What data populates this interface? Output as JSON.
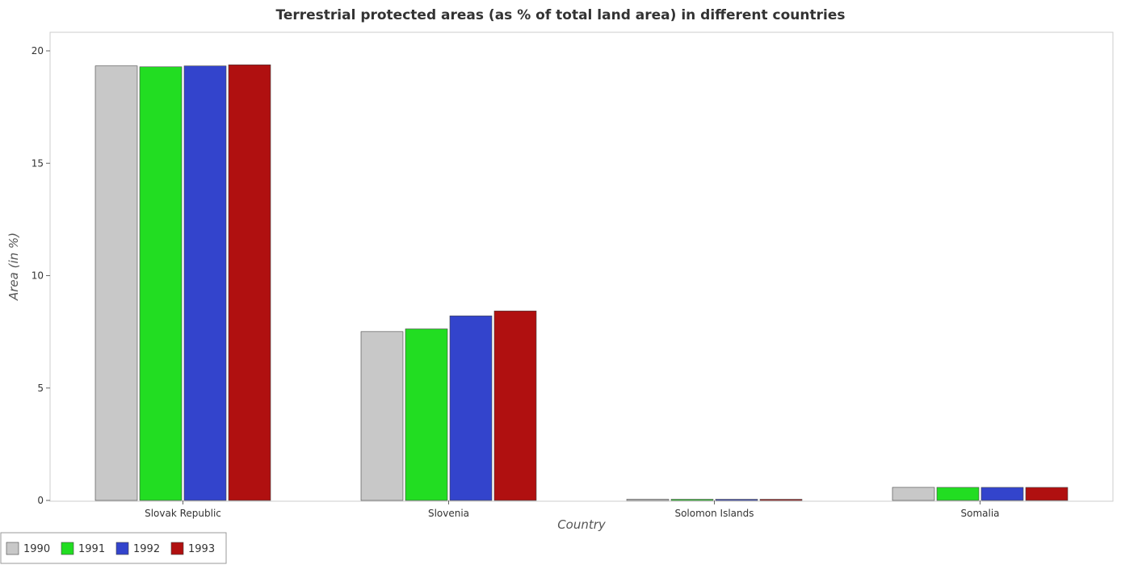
{
  "chart_data": {
    "type": "bar",
    "title": "Terrestrial protected areas (as % of total land area) in different countries",
    "xlabel": "Country",
    "ylabel": "Area (in %)",
    "categories": [
      "Slovak Republic",
      "Slovenia",
      "Solomon Islands",
      "Somalia"
    ],
    "series": [
      {
        "name": "1990",
        "color": "#c8c8c8",
        "values": [
          19.33,
          7.51,
          0.05,
          0.58
        ]
      },
      {
        "name": "1991",
        "color": "#22dd22",
        "values": [
          19.29,
          7.63,
          0.05,
          0.58
        ]
      },
      {
        "name": "1992",
        "color": "#3344cc",
        "values": [
          19.33,
          8.21,
          0.05,
          0.58
        ]
      },
      {
        "name": "1993",
        "color": "#b01010",
        "values": [
          19.38,
          8.43,
          0.05,
          0.58
        ]
      }
    ],
    "ylim": [
      0,
      20
    ],
    "yticks": [
      0,
      5,
      10,
      15,
      20
    ],
    "grid": false,
    "legend_position": "bottom-left"
  }
}
